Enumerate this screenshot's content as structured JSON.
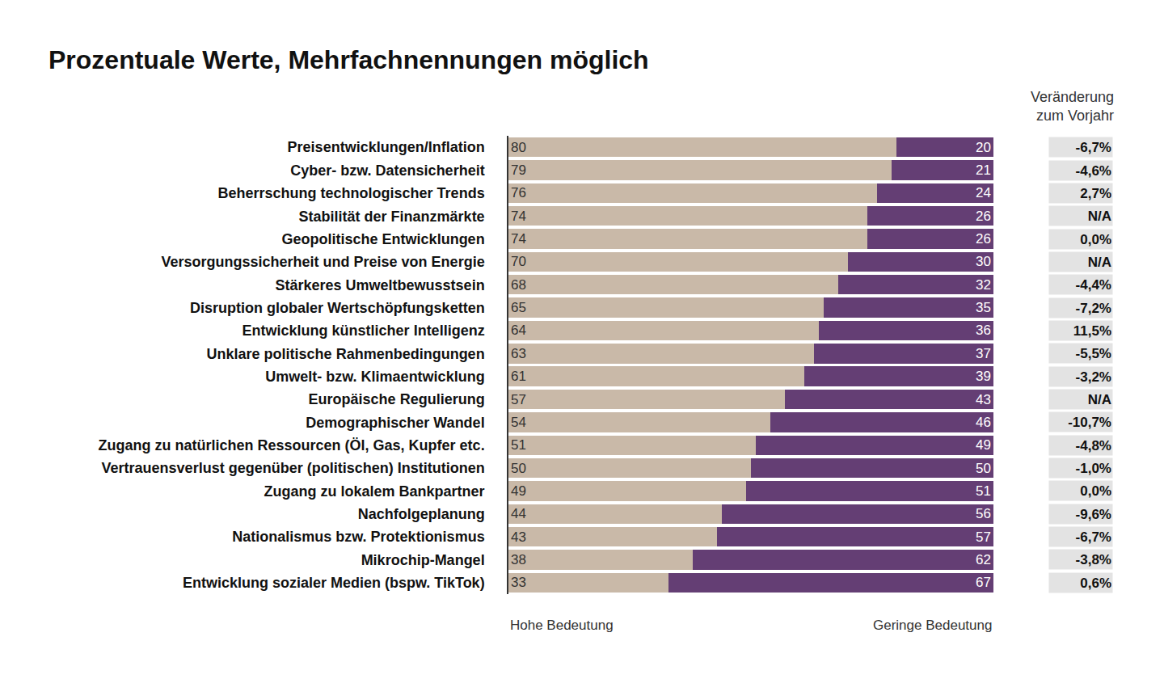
{
  "chart_data": {
    "type": "bar",
    "title": "Prozentuale Werte, Mehrfachnennungen möglich",
    "orientation": "horizontal",
    "stacked": true,
    "data_labels": true,
    "tick_labels": "y",
    "grid": false,
    "xlim": [
      0,
      100
    ],
    "categories": [
      "Preisentwicklungen/Inflation",
      "Cyber- bzw. Datensicherheit",
      "Beherrschung technologischer Trends",
      "Stabilität der Finanzmärkte",
      "Geopolitische Entwicklungen",
      "Versorgungssicherheit und Preise von Energie",
      "Stärkeres Umweltbewusstsein",
      "Disruption globaler Wertschöpfungsketten",
      "Entwicklung künstlicher Intelligenz",
      "Unklare politische Rahmenbedingungen",
      "Umwelt- bzw. Klimaentwicklung",
      "Europäische Regulierung",
      "Demographischer Wandel",
      "Zugang zu natürlichen Ressourcen (Öl, Gas, Kupfer etc.",
      "Vertrauensverlust gegenüber (politischen) Institutionen",
      "Zugang zu lokalem Bankpartner",
      "Nachfolgeplanung",
      "Nationalismus bzw. Protektionismus",
      "Mikrochip-Mangel",
      "Entwicklung sozialer Medien (bspw. TikTok)"
    ],
    "series": [
      {
        "name": "Hohe Bedeutung",
        "color": "#c9b9a8",
        "values": [
          80,
          79,
          76,
          74,
          74,
          70,
          68,
          65,
          64,
          63,
          61,
          57,
          54,
          51,
          50,
          49,
          44,
          43,
          38,
          33
        ]
      },
      {
        "name": "Geringe Bedeutung",
        "color": "#643e74",
        "values": [
          20,
          21,
          24,
          26,
          26,
          30,
          32,
          35,
          36,
          37,
          39,
          43,
          46,
          49,
          50,
          51,
          56,
          57,
          62,
          67
        ]
      }
    ],
    "change": {
      "title": "Veränderung\nzum Vorjahr",
      "values": [
        -6.7,
        -4.6,
        2.7,
        null,
        0.0,
        null,
        -4.4,
        -7.2,
        11.5,
        -5.5,
        -3.2,
        null,
        -10.7,
        -4.8,
        -1.0,
        0.0,
        -9.6,
        -6.7,
        -3.8,
        0.6
      ],
      "value_labels": [
        "-6,7%",
        "-4,6%",
        "2,7%",
        "N/A",
        "0,0%",
        "N/A",
        "-4,4%",
        "-7,2%",
        "11,5%",
        "-5,5%",
        "-3,2%",
        "N/A",
        "-10,7%",
        "-4,8%",
        "-1,0%",
        "0,0%",
        "-9,6%",
        "-6,7%",
        "-3,8%",
        "0,6%"
      ]
    }
  }
}
